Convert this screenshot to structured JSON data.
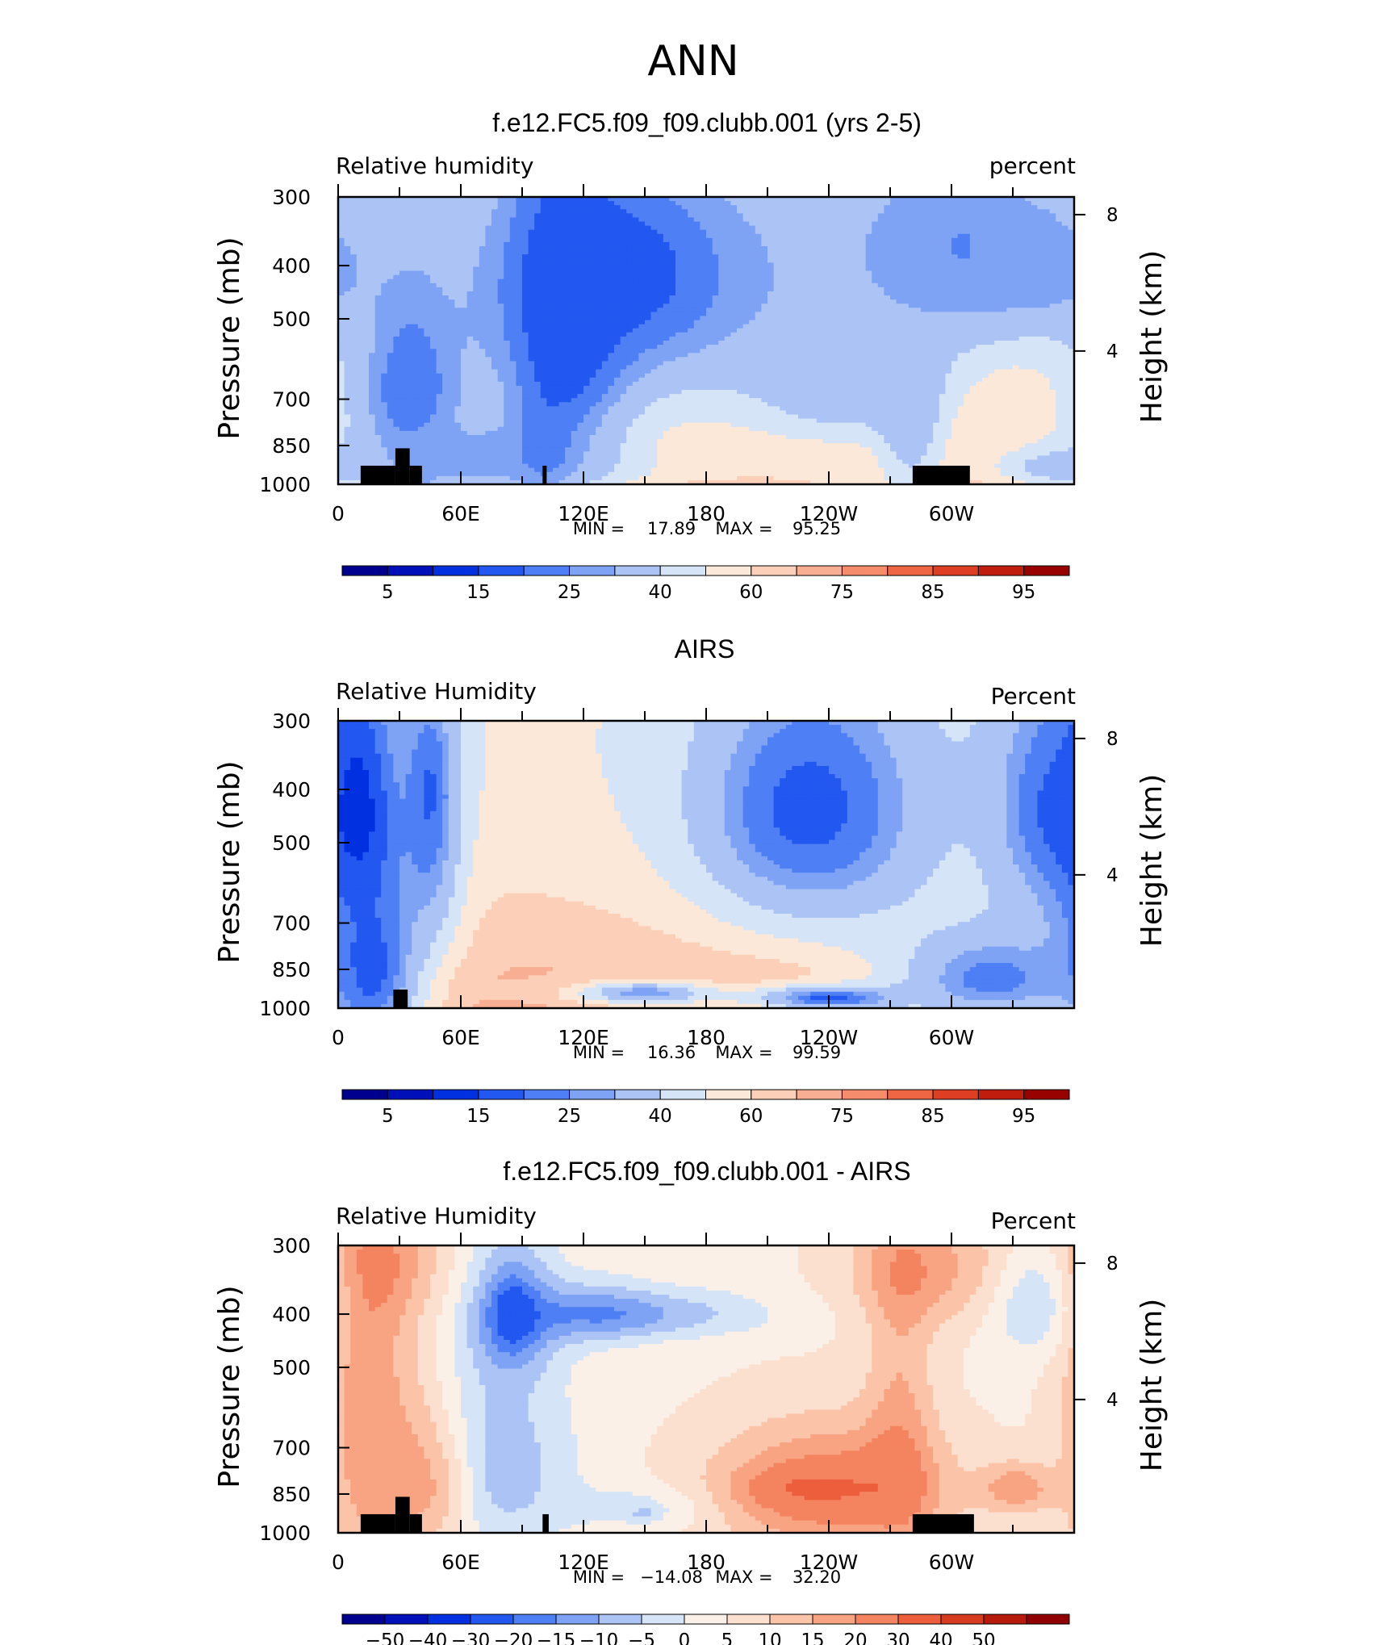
{
  "figure": {
    "title": "ANN"
  },
  "colors": {
    "rh_levels": [
      "#00008f",
      "#0010b8",
      "#0030e0",
      "#2257f0",
      "#4f7ff4",
      "#7ea3f5",
      "#abc4f5",
      "#d6e4f7",
      "#fce8d8",
      "#fcd0b8",
      "#f8ae92",
      "#f58d6d",
      "#ef6645",
      "#de3e24",
      "#c01d0e",
      "#980302"
    ],
    "diff_levels": [
      "#00008f",
      "#0010b8",
      "#0030e0",
      "#2257f0",
      "#4f7ff4",
      "#7ea3f5",
      "#abc4f5",
      "#d6e4f7",
      "#fbf0e8",
      "#fce0cf",
      "#fbc4a8",
      "#f8a482",
      "#f4845f",
      "#ec5e3c",
      "#d63a1f",
      "#b61a0b",
      "#900000"
    ]
  },
  "chart_data": [
    {
      "type": "heatmap",
      "title": "f.e12.FC5.f09_f09.clubb.001 (yrs 2-5)",
      "left_label": "Relative  humidity",
      "right_label": "percent",
      "ylabel": "Pressure  (mb)",
      "y2label": "Height  (km)",
      "y_ticks": [
        "300",
        "400",
        "500",
        "700",
        "850",
        "1000"
      ],
      "y2_ticks": [
        "8",
        "4"
      ],
      "x_ticks": [
        "0",
        "60E",
        "120E",
        "180",
        "120W",
        "60W"
      ],
      "stats": {
        "min_label": "MIN =",
        "min": "17.89",
        "max_label": "MAX =",
        "max": "95.25"
      },
      "colorbar_labels": [
        "5",
        "15",
        "25",
        "40",
        "60",
        "75",
        "85",
        "95"
      ],
      "blobs": [
        {
          "lon": 150,
          "p": 450,
          "rlon": 75,
          "rp": 200,
          "v": 26
        },
        {
          "lon": 150,
          "p": 410,
          "rlon": 35,
          "rp": 90,
          "v": 18
        },
        {
          "lon": 300,
          "p": 380,
          "rlon": 40,
          "rp": 120,
          "v": 20
        },
        {
          "lon": 340,
          "p": 400,
          "rlon": 25,
          "rp": 80,
          "v": 26
        },
        {
          "lon": 245,
          "p": 500,
          "rlon": 40,
          "rp": 350,
          "v": 30
        },
        {
          "lon": 195,
          "p": 930,
          "rlon": 160,
          "rp": 70,
          "v": 60
        },
        {
          "lon": 37,
          "p": 850,
          "rlon": 8,
          "rp": 200,
          "v": 25
        },
        {
          "lon": 35,
          "p": 700,
          "rlon": 25,
          "rp": 250,
          "v": 20
        },
        {
          "lon": 280,
          "p": 720,
          "rlon": 12,
          "rp": 230,
          "v": 30
        },
        {
          "lon": 70,
          "p": 900,
          "rlon": 50,
          "rp": 130,
          "v": 28
        },
        {
          "lon": 100,
          "p": 880,
          "rlon": 10,
          "rp": 200,
          "v": 28
        },
        {
          "lon": 350,
          "p": 930,
          "rlon": 20,
          "rp": 60,
          "v": 35
        },
        {
          "lon": 112,
          "p": 500,
          "rlon": 25,
          "rp": 300,
          "v": 15
        }
      ],
      "topography": [
        {
          "lon0": 11,
          "lon1": 28,
          "p": 925
        },
        {
          "lon0": 28,
          "lon1": 35,
          "p": 860
        },
        {
          "lon0": 35,
          "lon1": 41,
          "p": 925
        },
        {
          "lon0": 100,
          "lon1": 102,
          "p": 925
        },
        {
          "lon0": 281,
          "lon1": 309,
          "p": 925
        }
      ]
    },
    {
      "type": "heatmap",
      "title": "AIRS",
      "left_label": "Relative  Humidity",
      "right_label": "Percent",
      "ylabel": "Pressure  (mb)",
      "y2label": "Height  (km)",
      "y_ticks": [
        "300",
        "400",
        "500",
        "700",
        "850",
        "1000"
      ],
      "y2_ticks": [
        "8",
        "4"
      ],
      "x_ticks": [
        "0",
        "60E",
        "120E",
        "180",
        "120W",
        "60W"
      ],
      "stats": {
        "min_label": "MIN =",
        "min": "16.36",
        "max_label": "MAX =",
        "max": "99.59"
      },
      "colorbar_labels": [
        "5",
        "15",
        "25",
        "40",
        "60",
        "75",
        "85",
        "95"
      ],
      "blobs": [
        {
          "lon": 235,
          "p": 450,
          "rlon": 50,
          "rp": 220,
          "v": 28
        },
        {
          "lon": 230,
          "p": 430,
          "rlon": 30,
          "rp": 120,
          "v": 18
        },
        {
          "lon": 45,
          "p": 450,
          "rlon": 12,
          "rp": 220,
          "v": 25
        },
        {
          "lon": 45,
          "p": 400,
          "rlon": 6,
          "rp": 70,
          "v": 20
        },
        {
          "lon": 345,
          "p": 430,
          "rlon": 22,
          "rp": 180,
          "v": 22
        },
        {
          "lon": 10,
          "p": 450,
          "rlon": 15,
          "rp": 200,
          "v": 12
        },
        {
          "lon": 165,
          "p": 940,
          "rlon": 130,
          "rp": 60,
          "v": 70
        },
        {
          "lon": 150,
          "p": 940,
          "rlon": 25,
          "rp": 35,
          "v": 25
        },
        {
          "lon": 15,
          "p": 850,
          "rlon": 20,
          "rp": 260,
          "v": 15
        },
        {
          "lon": 320,
          "p": 880,
          "rlon": 40,
          "rp": 150,
          "v": 22
        },
        {
          "lon": 240,
          "p": 960,
          "rlon": 30,
          "rp": 40,
          "v": 18
        }
      ],
      "topography": [
        {
          "lon0": 27,
          "lon1": 34,
          "p": 925
        }
      ]
    },
    {
      "type": "heatmap",
      "title": "f.e12.FC5.f09_f09.clubb.001 - AIRS",
      "left_label": "Relative Humidity",
      "right_label": "Percent",
      "ylabel": "Pressure  (mb)",
      "y2label": "Height  (km)",
      "y_ticks": [
        "300",
        "400",
        "500",
        "700",
        "850",
        "1000"
      ],
      "y2_ticks": [
        "8",
        "4"
      ],
      "x_ticks": [
        "0",
        "60E",
        "120E",
        "180",
        "120W",
        "60W"
      ],
      "stats": {
        "min_label": "MIN =",
        "min": "−14.08",
        "max_label": "MAX =",
        "max": "32.20"
      },
      "colorbar_labels": [
        "−50",
        "−40",
        "−30",
        "−20",
        "−15",
        "−10",
        "−5",
        "0",
        "5",
        "10",
        "15",
        "20",
        "30",
        "40",
        "50"
      ],
      "blobs": [
        {
          "lon": 240,
          "p": 840,
          "rlon": 40,
          "rp": 150,
          "v": 22
        },
        {
          "lon": 275,
          "p": 620,
          "rlon": 12,
          "rp": 320,
          "v": 10
        },
        {
          "lon": 230,
          "p": 830,
          "rlon": 22,
          "rp": 40,
          "v": 8
        },
        {
          "lon": 15,
          "p": 600,
          "rlon": 15,
          "rp": 450,
          "v": 15
        },
        {
          "lon": 40,
          "p": 800,
          "rlon": 10,
          "rp": 200,
          "v": 10
        },
        {
          "lon": 55,
          "p": 820,
          "rlon": 10,
          "rp": 150,
          "v": 9
        },
        {
          "lon": 30,
          "p": 320,
          "rlon": 20,
          "rp": 60,
          "v": 8
        },
        {
          "lon": 290,
          "p": 330,
          "rlon": 30,
          "rp": 60,
          "v": 12
        },
        {
          "lon": 332,
          "p": 830,
          "rlon": 12,
          "rp": 60,
          "v": 14
        },
        {
          "lon": 340,
          "p": 380,
          "rlon": 15,
          "rp": 60,
          "v": -11
        },
        {
          "lon": 85,
          "p": 400,
          "rlon": 15,
          "rp": 80,
          "v": -18
        },
        {
          "lon": 85,
          "p": 400,
          "rlon": 6,
          "rp": 40,
          "v": -8
        },
        {
          "lon": 80,
          "p": 750,
          "rlon": 25,
          "rp": 220,
          "v": -12
        },
        {
          "lon": 155,
          "p": 400,
          "rlon": 40,
          "rp": 30,
          "v": -12
        },
        {
          "lon": 150,
          "p": 900,
          "rlon": 25,
          "rp": 60,
          "v": -7
        },
        {
          "lon": 150,
          "p": 925,
          "rlon": 5,
          "rp": 20,
          "v": -6
        },
        {
          "lon": 125,
          "p": 400,
          "rlon": 20,
          "rp": 40,
          "v": -10
        }
      ],
      "topography": [
        {
          "lon0": 11,
          "lon1": 28,
          "p": 925
        },
        {
          "lon0": 28,
          "lon1": 35,
          "p": 860
        },
        {
          "lon0": 35,
          "lon1": 41,
          "p": 925
        },
        {
          "lon0": 100,
          "lon1": 103,
          "p": 925
        },
        {
          "lon0": 281,
          "lon1": 311,
          "p": 925
        }
      ]
    }
  ]
}
